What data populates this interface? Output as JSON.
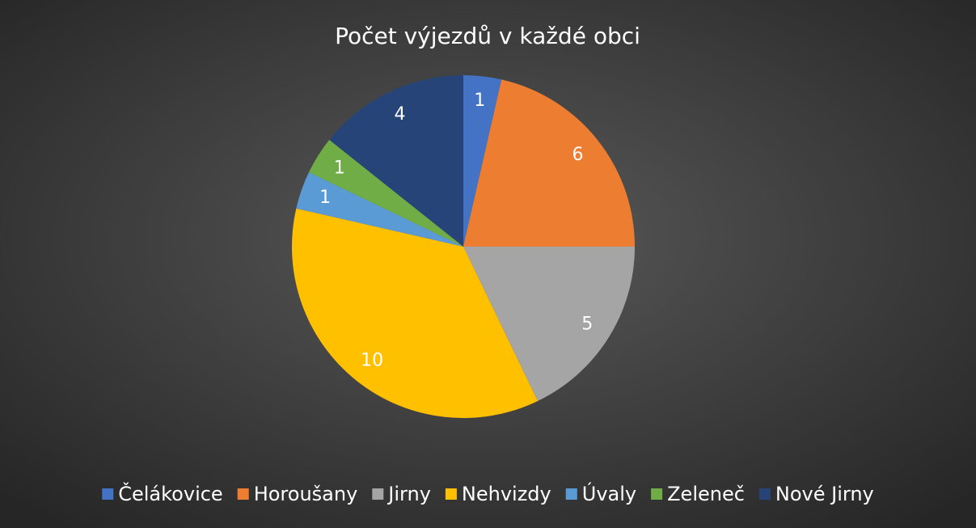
{
  "chart_data": {
    "type": "pie",
    "title": "Počet výjezdů v každé obci",
    "categories": [
      "Čelákovice",
      "Horoušany",
      "Jirny",
      "Nehvizdy",
      "Úvaly",
      "Zeleneč",
      "Nové Jirny"
    ],
    "values": [
      1,
      6,
      5,
      10,
      1,
      1,
      4
    ],
    "colors": [
      "#4472c4",
      "#ed7d31",
      "#a5a5a5",
      "#ffc000",
      "#5b9bd5",
      "#70ad47",
      "#264478"
    ],
    "legend": "bottom"
  }
}
